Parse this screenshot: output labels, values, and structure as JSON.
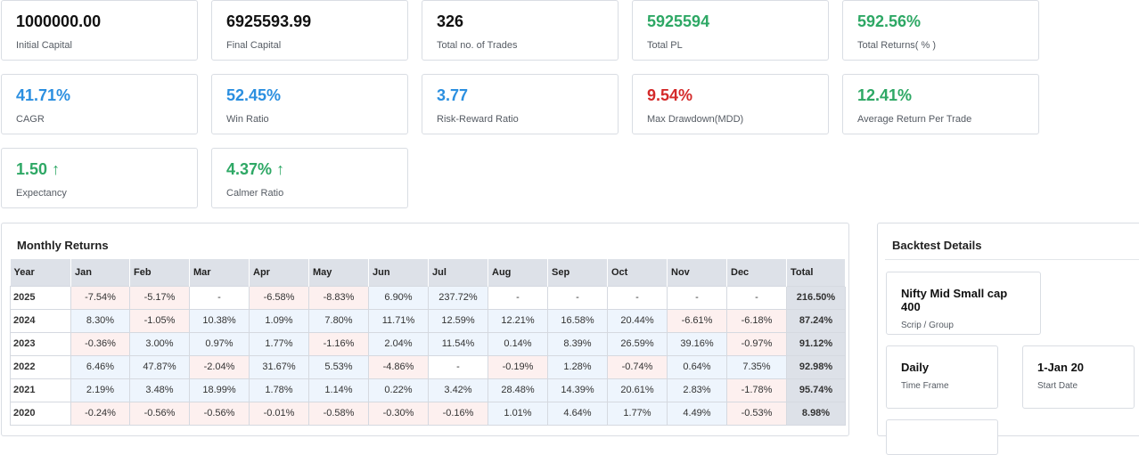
{
  "stats": [
    {
      "value": "1000000.00",
      "label": "Initial Capital",
      "color": "#111111"
    },
    {
      "value": "6925593.99",
      "label": "Final Capital",
      "color": "#111111"
    },
    {
      "value": "326",
      "label": "Total no. of Trades",
      "color": "#111111"
    },
    {
      "value": "5925594",
      "label": "Total PL",
      "color": "#2ea865"
    },
    {
      "value": "592.56%",
      "label": "Total Returns( % )",
      "color": "#2ea865"
    },
    {
      "value": "41.71%",
      "label": "CAGR",
      "color": "#2b8fe0"
    },
    {
      "value": "52.45%",
      "label": "Win Ratio",
      "color": "#2b8fe0"
    },
    {
      "value": "3.77",
      "label": "Risk-Reward Ratio",
      "color": "#2b8fe0"
    },
    {
      "value": "9.54%",
      "label": "Max Drawdown(MDD)",
      "color": "#d42a2a"
    },
    {
      "value": "12.41%",
      "label": "Average Return Per Trade",
      "color": "#2ea865"
    },
    {
      "value": "1.50",
      "arrow": "↑",
      "label": "Expectancy",
      "color": "#2ea865"
    },
    {
      "value": "4.37%",
      "arrow": "↑",
      "label": "Calmer Ratio",
      "color": "#2ea865"
    }
  ],
  "monthly": {
    "title": "Monthly Returns",
    "headers": [
      "Year",
      "Jan",
      "Feb",
      "Mar",
      "Apr",
      "May",
      "Jun",
      "Jul",
      "Aug",
      "Sep",
      "Oct",
      "Nov",
      "Dec",
      "Total"
    ],
    "rows": [
      {
        "year": "2025",
        "cells": [
          "-7.54%",
          "-5.17%",
          "-",
          "-6.58%",
          "-8.83%",
          "6.90%",
          "237.72%",
          "-",
          "-",
          "-",
          "-",
          "-"
        ],
        "total": "216.50%"
      },
      {
        "year": "2024",
        "cells": [
          "8.30%",
          "-1.05%",
          "10.38%",
          "1.09%",
          "7.80%",
          "11.71%",
          "12.59%",
          "12.21%",
          "16.58%",
          "20.44%",
          "-6.61%",
          "-6.18%"
        ],
        "total": "87.24%"
      },
      {
        "year": "2023",
        "cells": [
          "-0.36%",
          "3.00%",
          "0.97%",
          "1.77%",
          "-1.16%",
          "2.04%",
          "11.54%",
          "0.14%",
          "8.39%",
          "26.59%",
          "39.16%",
          "-0.97%"
        ],
        "total": "91.12%"
      },
      {
        "year": "2022",
        "cells": [
          "6.46%",
          "47.87%",
          "-2.04%",
          "31.67%",
          "5.53%",
          "-4.86%",
          "-",
          "-0.19%",
          "1.28%",
          "-0.74%",
          "0.64%",
          "7.35%"
        ],
        "total": "92.98%"
      },
      {
        "year": "2021",
        "cells": [
          "2.19%",
          "3.48%",
          "18.99%",
          "1.78%",
          "1.14%",
          "0.22%",
          "3.42%",
          "28.48%",
          "14.39%",
          "20.61%",
          "2.83%",
          "-1.78%"
        ],
        "total": "95.74%"
      },
      {
        "year": "2020",
        "cells": [
          "-0.24%",
          "-0.56%",
          "-0.56%",
          "-0.01%",
          "-0.58%",
          "-0.30%",
          "-0.16%",
          "1.01%",
          "4.64%",
          "1.77%",
          "4.49%",
          "-0.53%"
        ],
        "total": "8.98%"
      }
    ]
  },
  "backtest": {
    "title": "Backtest Details",
    "items": [
      {
        "value": "Nifty Mid Small cap 400",
        "label": "Scrip / Group"
      },
      {
        "value": "Daily",
        "label": "Time Frame"
      },
      {
        "value": "1-Jan 20",
        "label": "Start Date"
      }
    ]
  }
}
